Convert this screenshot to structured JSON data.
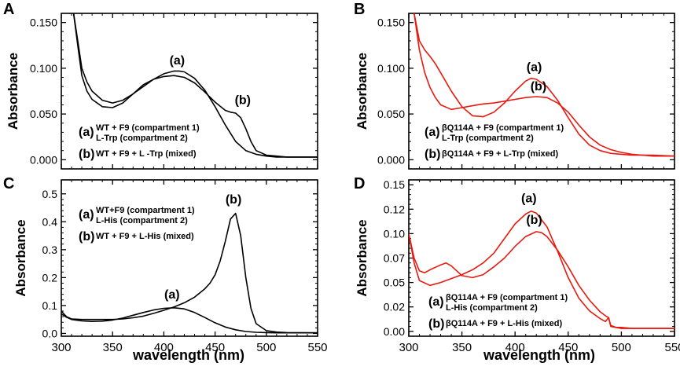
{
  "figure": {
    "xlabel": "wavelength (nm)"
  },
  "chart_data": [
    {
      "panel": "A",
      "type": "line",
      "title": "",
      "xlabel": "",
      "ylabel": "Absorbance",
      "xlim": [
        300,
        550
      ],
      "ylim": [
        -0.01,
        0.16
      ],
      "xticks": [
        300,
        350,
        400,
        450,
        500,
        550
      ],
      "xtick_labels": [],
      "yticks": [
        0.0,
        0.05,
        0.1,
        0.15
      ],
      "ytick_labels": [
        "0.000",
        "0.050",
        "0.100",
        "0.150"
      ],
      "color": "#000000",
      "series": [
        {
          "name": "WT + F9 (compartment 1) / L-Trp (compartment 2)",
          "tag": "(a)",
          "x": [
            312,
            316,
            320,
            325,
            330,
            340,
            350,
            360,
            370,
            380,
            390,
            400,
            410,
            415,
            420,
            430,
            440,
            450,
            460,
            470,
            480,
            490,
            500,
            510,
            520,
            530,
            550
          ],
          "y": [
            0.16,
            0.13,
            0.1,
            0.085,
            0.075,
            0.065,
            0.062,
            0.065,
            0.072,
            0.08,
            0.088,
            0.094,
            0.097,
            0.097,
            0.096,
            0.089,
            0.076,
            0.058,
            0.038,
            0.02,
            0.01,
            0.006,
            0.004,
            0.003,
            0.003,
            0.003,
            0.003
          ]
        },
        {
          "name": "WT + F9 + L -Trp (mixed)",
          "tag": "(b)",
          "x": [
            312,
            316,
            320,
            325,
            330,
            340,
            350,
            360,
            370,
            380,
            390,
            400,
            410,
            420,
            430,
            440,
            450,
            460,
            465,
            470,
            475,
            480,
            485,
            490,
            500,
            510,
            520,
            530,
            550
          ],
          "y": [
            0.16,
            0.125,
            0.092,
            0.075,
            0.066,
            0.058,
            0.057,
            0.062,
            0.072,
            0.082,
            0.088,
            0.091,
            0.092,
            0.09,
            0.084,
            0.074,
            0.063,
            0.054,
            0.052,
            0.051,
            0.046,
            0.034,
            0.02,
            0.01,
            0.005,
            0.004,
            0.003,
            0.003,
            0.003
          ]
        }
      ],
      "annotations": [
        {
          "text": "(a)",
          "x": 413,
          "y": 0.104
        },
        {
          "text": "(b)",
          "x": 477,
          "y": 0.061
        }
      ],
      "legend": [
        {
          "tag": "(a)",
          "lines": [
            "WT + F9 (compartment 1)",
            "L-Trp (compartment 2)"
          ]
        },
        {
          "tag": "(b)",
          "lines": [
            "WT + F9 + L -Trp (mixed)"
          ]
        }
      ]
    },
    {
      "panel": "B",
      "type": "line",
      "title": "",
      "xlabel": "",
      "ylabel": "Absorbance",
      "xlim": [
        300,
        550
      ],
      "ylim": [
        -0.01,
        0.16
      ],
      "xticks": [
        300,
        350,
        400,
        450,
        500,
        550
      ],
      "xtick_labels": [],
      "yticks": [
        0.0,
        0.05,
        0.1,
        0.15
      ],
      "ytick_labels": [
        "0.000",
        "0.050",
        "0.100",
        "0.150"
      ],
      "color": "#e8190f",
      "series": [
        {
          "name": "βQ114A + F9 (compartment 1) / L-Trp (compartment 2)",
          "tag": "(a)",
          "x": [
            305,
            310,
            315,
            320,
            325,
            330,
            340,
            350,
            360,
            370,
            380,
            390,
            400,
            410,
            415,
            420,
            430,
            440,
            450,
            460,
            470,
            480,
            490,
            500,
            510,
            520,
            530,
            550
          ],
          "y": [
            0.16,
            0.13,
            0.12,
            0.113,
            0.105,
            0.095,
            0.075,
            0.058,
            0.048,
            0.047,
            0.052,
            0.062,
            0.075,
            0.086,
            0.089,
            0.088,
            0.08,
            0.065,
            0.046,
            0.028,
            0.016,
            0.01,
            0.007,
            0.006,
            0.005,
            0.005,
            0.004,
            0.004
          ]
        },
        {
          "name": "βQ114A + F9 + L-Trp (mixed)",
          "tag": "(b)",
          "x": [
            305,
            310,
            315,
            320,
            325,
            330,
            340,
            350,
            360,
            370,
            380,
            390,
            400,
            410,
            420,
            430,
            440,
            450,
            460,
            470,
            480,
            490,
            500,
            510,
            520,
            530,
            550
          ],
          "y": [
            0.16,
            0.12,
            0.095,
            0.079,
            0.068,
            0.06,
            0.055,
            0.057,
            0.059,
            0.061,
            0.062,
            0.064,
            0.066,
            0.068,
            0.069,
            0.068,
            0.062,
            0.052,
            0.038,
            0.025,
            0.016,
            0.011,
            0.008,
            0.006,
            0.005,
            0.005,
            0.004
          ]
        }
      ],
      "annotations": [
        {
          "text": "(a)",
          "x": 418,
          "y": 0.097
        },
        {
          "text": "(b)",
          "x": 422,
          "y": 0.076
        }
      ],
      "legend": [
        {
          "tag": "(a)",
          "lines": [
            "βQ114A + F9 (compartment 1)",
            "L-Trp (compartment 2)"
          ]
        },
        {
          "tag": "(b)",
          "lines": [
            "βQ114A + F9 + L-Trp (mixed)"
          ]
        }
      ]
    },
    {
      "panel": "C",
      "type": "line",
      "title": "",
      "xlabel": "wavelength (nm)",
      "ylabel": "Absorbance",
      "xlim": [
        300,
        550
      ],
      "ylim": [
        -0.01,
        0.55
      ],
      "xticks": [
        300,
        350,
        400,
        450,
        500,
        550
      ],
      "xtick_labels": [
        "300",
        "350",
        "400",
        "450",
        "500",
        "550"
      ],
      "yticks": [
        0.0,
        0.1,
        0.2,
        0.3,
        0.4,
        0.5
      ],
      "ytick_labels": [
        "0.0",
        "0.1",
        "0.2",
        "0.3",
        "0.4",
        "0.5"
      ],
      "color": "#000000",
      "series": [
        {
          "name": "WT+F9 (compartment 1) / L-His (compartment 2)",
          "tag": "(a)",
          "x": [
            300,
            305,
            310,
            320,
            330,
            340,
            350,
            360,
            370,
            380,
            390,
            400,
            410,
            420,
            430,
            440,
            450,
            460,
            470,
            480,
            490,
            500,
            510,
            520,
            550
          ],
          "y": [
            0.07,
            0.058,
            0.05,
            0.045,
            0.043,
            0.044,
            0.048,
            0.055,
            0.065,
            0.075,
            0.084,
            0.09,
            0.092,
            0.088,
            0.075,
            0.057,
            0.038,
            0.023,
            0.013,
            0.007,
            0.004,
            0.003,
            0.002,
            0.002,
            0.002
          ]
        },
        {
          "name": "WT + F9 + L-His (mixed)",
          "tag": "(b)",
          "x": [
            300,
            305,
            310,
            320,
            330,
            340,
            350,
            360,
            370,
            380,
            390,
            400,
            410,
            420,
            430,
            440,
            445,
            450,
            455,
            460,
            465,
            470,
            475,
            480,
            485,
            490,
            500,
            510,
            520,
            550
          ],
          "y": [
            0.08,
            0.06,
            0.052,
            0.05,
            0.05,
            0.05,
            0.05,
            0.052,
            0.056,
            0.062,
            0.072,
            0.083,
            0.095,
            0.11,
            0.13,
            0.16,
            0.18,
            0.21,
            0.26,
            0.33,
            0.41,
            0.43,
            0.35,
            0.2,
            0.09,
            0.035,
            0.01,
            0.005,
            0.003,
            0.002
          ]
        }
      ],
      "annotations": [
        {
          "text": "(a)",
          "x": 408,
          "y": 0.125
        },
        {
          "text": "(b)",
          "x": 468,
          "y": 0.465
        }
      ],
      "legend": [
        {
          "tag": "(a)",
          "lines": [
            "WT+F9 (compartment 1)",
            "L-His (compartment 2)"
          ]
        },
        {
          "tag": "(b)",
          "lines": [
            "WT + F9 + L-His (mixed)"
          ]
        }
      ]
    },
    {
      "panel": "D",
      "type": "line",
      "title": "",
      "xlabel": "wavelength (nm)",
      "ylabel": "Absorbance",
      "xlim": [
        300,
        550
      ],
      "ylim": [
        -0.005,
        0.155
      ],
      "xticks": [
        300,
        350,
        400,
        450,
        500,
        550
      ],
      "xtick_labels": [
        "300",
        "350",
        "400",
        "450",
        "500",
        "550"
      ],
      "yticks": [
        0.0,
        0.025,
        0.05,
        0.075,
        0.1,
        0.125,
        0.15
      ],
      "ytick_labels": [
        "0.00",
        "0.02",
        "0.05",
        "0.07",
        "0.10",
        "0.12",
        "0.15"
      ],
      "color": "#e8190f",
      "series": [
        {
          "name": "βQ114A + F9 (compartment 1) / L-His (compartment 2)",
          "tag": "(a)",
          "x": [
            300,
            305,
            310,
            320,
            330,
            340,
            350,
            360,
            370,
            380,
            390,
            400,
            410,
            415,
            420,
            430,
            440,
            450,
            460,
            470,
            480,
            485,
            488,
            490,
            495,
            500,
            510,
            520,
            530,
            550
          ],
          "y": [
            0.1,
            0.07,
            0.052,
            0.047,
            0.05,
            0.054,
            0.058,
            0.063,
            0.07,
            0.08,
            0.095,
            0.11,
            0.12,
            0.123,
            0.121,
            0.107,
            0.082,
            0.055,
            0.034,
            0.021,
            0.013,
            0.01,
            0.014,
            0.006,
            0.004,
            0.004,
            0.003,
            0.003,
            0.003,
            0.003
          ]
        },
        {
          "name": "βQ114A + F9 + L-His (mixed)",
          "tag": "(b)",
          "x": [
            300,
            305,
            310,
            315,
            320,
            330,
            335,
            340,
            350,
            360,
            370,
            380,
            390,
            400,
            410,
            420,
            425,
            430,
            440,
            450,
            460,
            470,
            480,
            485,
            488,
            490,
            495,
            500,
            510,
            520,
            530,
            550
          ],
          "y": [
            0.1,
            0.075,
            0.062,
            0.06,
            0.063,
            0.068,
            0.07,
            0.067,
            0.057,
            0.055,
            0.058,
            0.066,
            0.075,
            0.087,
            0.097,
            0.102,
            0.101,
            0.097,
            0.083,
            0.066,
            0.047,
            0.032,
            0.02,
            0.016,
            0.014,
            0.005,
            0.004,
            0.003,
            0.003,
            0.003,
            0.003,
            0.003
          ]
        }
      ],
      "annotations": [
        {
          "text": "(a)",
          "x": 413,
          "y": 0.132
        },
        {
          "text": "(b)",
          "x": 418,
          "y": 0.11
        }
      ],
      "legend": [
        {
          "tag": "(a)",
          "lines": [
            "βQ114A + F9 (compartment 1)",
            "L-His (compartment 2)"
          ]
        },
        {
          "tag": "(b)",
          "lines": [
            "βQ114A + F9 + L-His (mixed)"
          ]
        }
      ]
    }
  ]
}
